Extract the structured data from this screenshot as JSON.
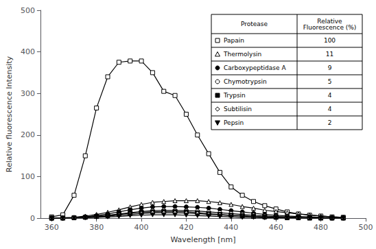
{
  "chart_data": {
    "type": "line",
    "xlabel": "Wavelength [nm]",
    "ylabel": "Relative fluorescence Intensity",
    "xlim": [
      355,
      500
    ],
    "xticks": [
      360,
      380,
      400,
      420,
      440,
      460,
      480,
      500
    ],
    "ylim": [
      0,
      500
    ],
    "yticks": [
      0,
      100,
      200,
      300,
      400,
      500
    ],
    "grid": false,
    "table_header": [
      "Protease",
      "Relative\nFluorescence (%)"
    ],
    "series": [
      {
        "name": "Papain",
        "color": "black",
        "marker": "open square",
        "fluorescence": 100,
        "x": [
          360,
          365,
          370,
          375,
          380,
          385,
          390,
          395,
          400,
          405,
          410,
          415,
          420,
          425,
          430,
          435,
          440,
          445,
          450,
          455,
          460,
          465,
          470,
          475,
          480,
          485,
          490
        ],
        "values": [
          3,
          8,
          55,
          150,
          265,
          340,
          375,
          378,
          378,
          350,
          305,
          295,
          250,
          200,
          155,
          110,
          75,
          55,
          40,
          30,
          22,
          15,
          10,
          7,
          5,
          3,
          2
        ]
      },
      {
        "name": "Thermolysin",
        "color": "black",
        "marker": "open triangle",
        "fluorescence": 11,
        "x": [
          360,
          365,
          370,
          375,
          380,
          385,
          390,
          395,
          400,
          405,
          410,
          415,
          420,
          425,
          430,
          435,
          440,
          445,
          450,
          455,
          460,
          465,
          470,
          475,
          480,
          485,
          490
        ],
        "values": [
          0,
          1,
          2,
          5,
          9,
          14,
          20,
          27,
          33,
          38,
          40,
          42,
          42,
          42,
          40,
          37,
          33,
          28,
          24,
          19,
          16,
          13,
          10,
          8,
          5,
          3,
          2
        ]
      },
      {
        "name": "Carboxypeptidase A",
        "color": "black",
        "marker": "filled circle",
        "fluorescence": 9,
        "x": [
          360,
          365,
          370,
          375,
          380,
          385,
          390,
          395,
          400,
          405,
          410,
          415,
          420,
          425,
          430,
          435,
          440,
          445,
          450,
          455,
          460,
          465,
          470,
          475,
          480,
          485,
          490
        ],
        "values": [
          0,
          0,
          1,
          3,
          6,
          10,
          15,
          20,
          24,
          27,
          28,
          28,
          27,
          26,
          24,
          21,
          18,
          15,
          12,
          9,
          7,
          5,
          4,
          3,
          2,
          1,
          1
        ]
      },
      {
        "name": "Chymotrypsin",
        "color": "black",
        "marker": "open circle",
        "fluorescence": 5,
        "x": [
          360,
          365,
          370,
          375,
          380,
          385,
          390,
          395,
          400,
          405,
          410,
          415,
          420,
          425,
          430,
          435,
          440,
          445,
          450,
          455,
          460,
          465,
          470,
          475,
          480,
          485,
          490
        ],
        "values": [
          0,
          0,
          1,
          2,
          4,
          7,
          10,
          13,
          16,
          18,
          19,
          19,
          18,
          17,
          15,
          13,
          11,
          9,
          7,
          5,
          4,
          3,
          2,
          1,
          1,
          0,
          0
        ]
      },
      {
        "name": "Trypsin",
        "color": "black",
        "marker": "filled square",
        "fluorescence": 4,
        "x": [
          360,
          365,
          370,
          375,
          380,
          385,
          390,
          395,
          400,
          405,
          410,
          415,
          420,
          425,
          430,
          435,
          440,
          445,
          450,
          455,
          460,
          465,
          470,
          475,
          480,
          485,
          490
        ],
        "values": [
          0,
          0,
          1,
          2,
          4,
          6,
          9,
          12,
          14,
          15,
          16,
          16,
          15,
          13,
          11,
          9,
          7,
          6,
          4,
          3,
          2,
          1,
          1,
          0,
          0,
          0,
          0
        ]
      },
      {
        "name": "Subtilisin",
        "color": "black",
        "marker": "open diamond",
        "fluorescence": 4,
        "x": [
          360,
          365,
          370,
          375,
          380,
          385,
          390,
          395,
          400,
          405,
          410,
          415,
          420,
          425,
          430,
          435,
          440,
          445,
          450,
          455,
          460,
          465,
          470,
          475,
          480,
          485,
          490
        ],
        "values": [
          0,
          0,
          1,
          2,
          3,
          5,
          7,
          9,
          11,
          13,
          13,
          13,
          12,
          11,
          9,
          8,
          6,
          5,
          3,
          2,
          2,
          1,
          1,
          0,
          0,
          0,
          0
        ]
      },
      {
        "name": "Pepsin",
        "color": "black",
        "marker": "filled triangle-down",
        "fluorescence": 2,
        "x": [
          360,
          365,
          370,
          375,
          380,
          385,
          390,
          395,
          400,
          405,
          410,
          415,
          420,
          425,
          430,
          435,
          440,
          445,
          450,
          455,
          460,
          465,
          470,
          475,
          480,
          485,
          490
        ],
        "values": [
          0,
          0,
          0,
          1,
          2,
          3,
          4,
          6,
          7,
          8,
          8,
          8,
          7,
          6,
          5,
          4,
          3,
          2,
          2,
          1,
          1,
          0,
          0,
          0,
          0,
          0,
          0
        ]
      }
    ]
  }
}
